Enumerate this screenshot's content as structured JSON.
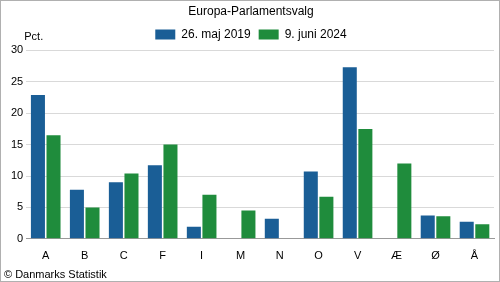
{
  "chart_data": {
    "type": "bar",
    "title": "Europa-Parlamentsvalg",
    "ylabel": "Pct.",
    "annotations": [
      "© Danmarks Statistik"
    ],
    "categories": [
      "A",
      "B",
      "C",
      "F",
      "I",
      "M",
      "N",
      "O",
      "V",
      "Æ",
      "Ø",
      "Å"
    ],
    "series": [
      {
        "name": "26. maj 2019",
        "color": "#1a5e96",
        "values": [
          22.9,
          7.8,
          9.0,
          11.7,
          1.9,
          null,
          3.2,
          10.7,
          27.3,
          null,
          3.7,
          2.7
        ]
      },
      {
        "name": "9. juni 2024",
        "color": "#1f8c3c",
        "values": [
          16.5,
          5.0,
          10.4,
          15.0,
          7.0,
          4.5,
          null,
          6.7,
          17.5,
          12.0,
          3.6,
          2.3
        ]
      }
    ],
    "ylim": [
      0,
      30
    ],
    "yticks": [
      0,
      5,
      10,
      15,
      20,
      25,
      30
    ],
    "grid": true,
    "legend": "top"
  }
}
